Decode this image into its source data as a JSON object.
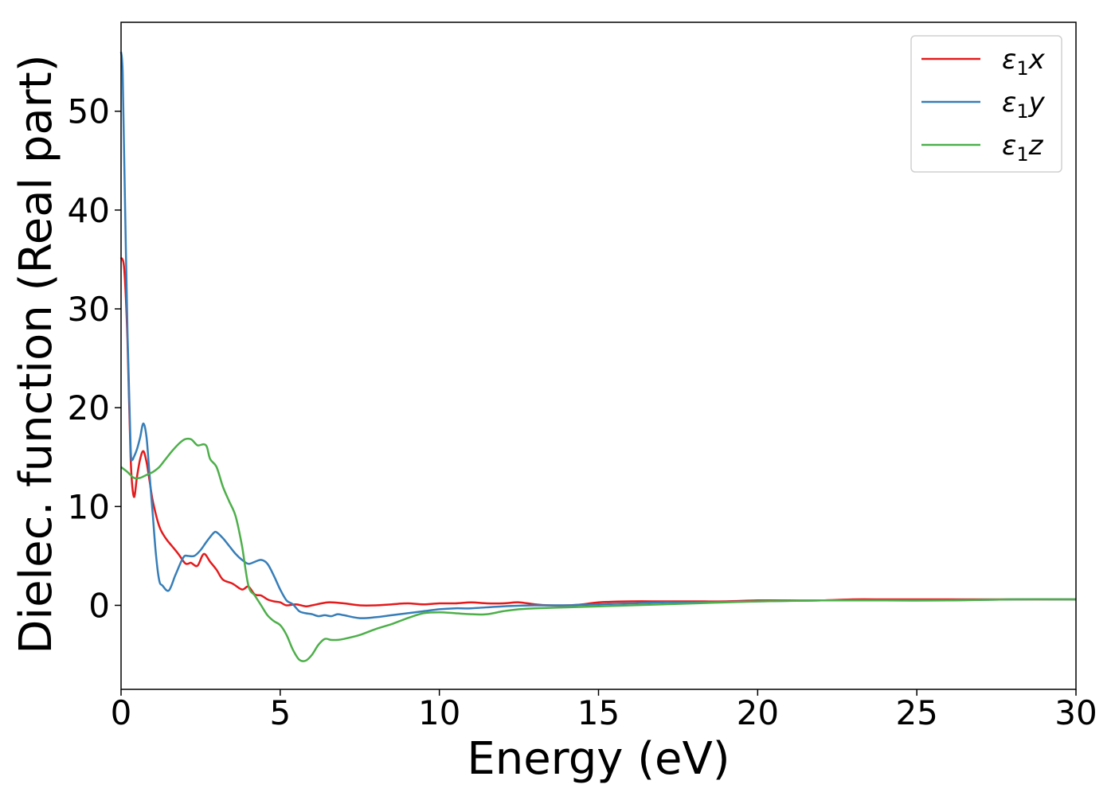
{
  "chart_data": {
    "type": "line",
    "title": "",
    "xlabel": "Energy (eV)",
    "ylabel": "Dielec. function (Real part)",
    "xlim": [
      0,
      30
    ],
    "ylim": [
      -8.5,
      59
    ],
    "xticks": [
      0,
      5,
      10,
      15,
      20,
      25,
      30
    ],
    "xtick_labels": [
      "0",
      "5",
      "10",
      "15",
      "20",
      "25",
      "30"
    ],
    "yticks": [
      0,
      10,
      20,
      30,
      40,
      50
    ],
    "ytick_labels": [
      "0",
      "10",
      "20",
      "30",
      "40",
      "50"
    ],
    "grid": false,
    "legend": "top-right",
    "series": [
      {
        "name": "ε1x",
        "symbol": "ε",
        "subscript": "1",
        "suffix": "x",
        "color": "#e41a1c",
        "x": [
          0,
          0.1,
          0.2,
          0.3,
          0.4,
          0.5,
          0.6,
          0.7,
          0.8,
          0.9,
          1.0,
          1.2,
          1.4,
          1.6,
          1.8,
          2.0,
          2.1,
          2.2,
          2.4,
          2.6,
          2.8,
          3.0,
          3.2,
          3.5,
          3.8,
          4.0,
          4.2,
          4.4,
          4.6,
          4.8,
          5.0,
          5.2,
          5.5,
          5.8,
          6.0,
          6.5,
          7.0,
          7.5,
          8.0,
          8.5,
          9.0,
          9.5,
          10.0,
          10.5,
          11.0,
          11.5,
          12.0,
          12.5,
          13.0,
          13.5,
          14.0,
          14.5,
          15.0,
          16.0,
          17.0,
          18.0,
          19.0,
          20.0,
          21.0,
          22.0,
          23.0,
          24.0,
          25.0,
          26.0,
          27.0,
          28.0,
          29.0,
          30.0
        ],
        "y": [
          35.2,
          34.0,
          27.0,
          15.0,
          11.0,
          13.0,
          14.8,
          15.6,
          14.5,
          12.5,
          10.5,
          8.0,
          6.8,
          6.0,
          5.2,
          4.3,
          4.2,
          4.3,
          4.0,
          5.2,
          4.4,
          3.6,
          2.6,
          2.2,
          1.6,
          1.9,
          1.1,
          1.0,
          0.6,
          0.4,
          0.3,
          0.0,
          0.1,
          -0.1,
          0.0,
          0.3,
          0.2,
          0.0,
          0.0,
          0.1,
          0.2,
          0.1,
          0.2,
          0.2,
          0.3,
          0.2,
          0.2,
          0.3,
          0.1,
          0.0,
          0.0,
          0.1,
          0.3,
          0.4,
          0.4,
          0.4,
          0.4,
          0.5,
          0.5,
          0.5,
          0.6,
          0.6,
          0.6,
          0.6,
          0.6,
          0.6,
          0.6,
          0.6
        ]
      },
      {
        "name": "ε1y",
        "symbol": "ε",
        "subscript": "1",
        "suffix": "y",
        "color": "#377eb8",
        "x": [
          0,
          0.05,
          0.1,
          0.2,
          0.3,
          0.35,
          0.4,
          0.5,
          0.6,
          0.7,
          0.8,
          0.9,
          1.0,
          1.1,
          1.2,
          1.3,
          1.5,
          1.7,
          1.9,
          2.0,
          2.1,
          2.3,
          2.5,
          2.7,
          2.9,
          3.0,
          3.2,
          3.4,
          3.6,
          3.8,
          4.0,
          4.2,
          4.4,
          4.6,
          4.8,
          5.0,
          5.2,
          5.4,
          5.6,
          5.8,
          6.0,
          6.2,
          6.4,
          6.6,
          6.8,
          7.0,
          7.5,
          8.0,
          8.5,
          9.0,
          9.5,
          10.0,
          10.5,
          11.0,
          12.0,
          13.0,
          14.0,
          15.0,
          16.0,
          17.0,
          18.0,
          20.0,
          22.0,
          24.0,
          26.0,
          28.0,
          30.0
        ],
        "y": [
          56.0,
          54.0,
          45.0,
          28.0,
          16.0,
          14.8,
          15.0,
          15.8,
          17.0,
          18.4,
          17.0,
          13.0,
          9.0,
          5.0,
          2.5,
          2.0,
          1.5,
          3.0,
          4.5,
          5.0,
          5.0,
          5.0,
          5.6,
          6.5,
          7.3,
          7.4,
          6.8,
          6.0,
          5.2,
          4.6,
          4.2,
          4.4,
          4.6,
          4.2,
          3.0,
          1.6,
          0.5,
          0.1,
          -0.6,
          -0.8,
          -0.9,
          -1.1,
          -1.0,
          -1.1,
          -0.9,
          -1.0,
          -1.3,
          -1.2,
          -1.0,
          -0.8,
          -0.6,
          -0.4,
          -0.3,
          -0.3,
          -0.1,
          0.0,
          0.0,
          0.1,
          0.2,
          0.3,
          0.3,
          0.4,
          0.5,
          0.5,
          0.5,
          0.6,
          0.6
        ]
      },
      {
        "name": "ε1z",
        "symbol": "ε",
        "subscript": "1",
        "suffix": "z",
        "color": "#4daf4a",
        "x": [
          0,
          0.2,
          0.4,
          0.6,
          0.8,
          1.0,
          1.2,
          1.4,
          1.6,
          1.8,
          2.0,
          2.2,
          2.4,
          2.6,
          2.7,
          2.8,
          3.0,
          3.2,
          3.4,
          3.6,
          3.8,
          4.0,
          4.2,
          4.4,
          4.6,
          4.8,
          5.0,
          5.2,
          5.4,
          5.6,
          5.8,
          6.0,
          6.2,
          6.4,
          6.6,
          6.8,
          7.0,
          7.5,
          8.0,
          8.5,
          9.0,
          9.5,
          10.0,
          10.5,
          11.0,
          11.5,
          12.0,
          12.5,
          13.0,
          14.0,
          15.0,
          16.0,
          18.0,
          20.0,
          22.0,
          24.0,
          26.0,
          28.0,
          30.0
        ],
        "y": [
          14.0,
          13.5,
          12.9,
          12.9,
          13.2,
          13.5,
          14.0,
          14.8,
          15.6,
          16.3,
          16.8,
          16.8,
          16.2,
          16.3,
          16.0,
          14.8,
          14.0,
          12.0,
          10.5,
          9.0,
          6.0,
          2.0,
          1.0,
          0.0,
          -1.0,
          -1.6,
          -2.0,
          -3.0,
          -4.5,
          -5.5,
          -5.6,
          -5.0,
          -4.0,
          -3.4,
          -3.5,
          -3.5,
          -3.4,
          -3.0,
          -2.4,
          -1.9,
          -1.3,
          -0.8,
          -0.7,
          -0.8,
          -0.9,
          -0.9,
          -0.6,
          -0.4,
          -0.3,
          -0.2,
          -0.1,
          0.0,
          0.2,
          0.4,
          0.5,
          0.5,
          0.5,
          0.6,
          0.6
        ]
      }
    ]
  }
}
